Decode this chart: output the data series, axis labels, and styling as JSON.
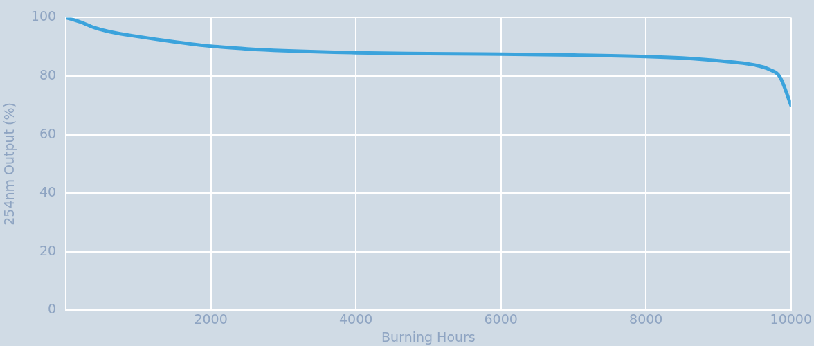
{
  "chart_data": {
    "type": "line",
    "xlabel": "Burning Hours",
    "ylabel": "254nm Output (%)",
    "x": [
      0,
      200,
      400,
      600,
      1000,
      1500,
      2000,
      2500,
      3000,
      4000,
      5000,
      6000,
      7000,
      8000,
      8500,
      8800,
      9200,
      9500,
      9700,
      9850,
      10000
    ],
    "series": [
      {
        "color": "#3ba3dc",
        "values": [
          100,
          98.5,
          96.5,
          95.2,
          93.5,
          91.7,
          90.2,
          89.3,
          88.7,
          88,
          87.7,
          87.5,
          87.2,
          86.7,
          86.2,
          85.7,
          84.8,
          83.8,
          82.3,
          79.6,
          70
        ]
      }
    ],
    "xlim": [
      0,
      10000
    ],
    "xticks": [
      {
        "value": 0,
        "label": null
      },
      2000,
      4000,
      6000,
      8000,
      10000
    ],
    "ylim": [
      0,
      100
    ],
    "yticks": [
      0,
      20,
      40,
      60,
      80,
      100
    ],
    "grid": true,
    "legend": false,
    "marker": "none",
    "line_style": "solid"
  }
}
